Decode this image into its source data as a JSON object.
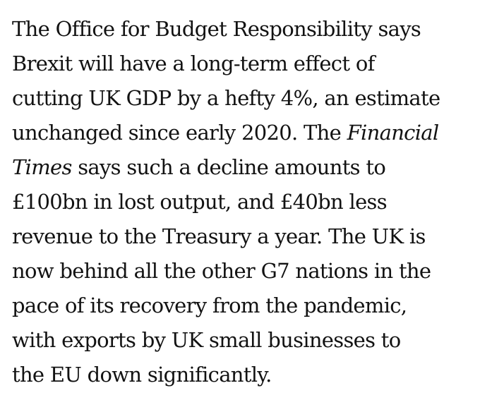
{
  "article": {
    "lines": [
      [
        "The Office for Budget Responsibility says"
      ],
      [
        "Brexit will have a long-term effect of"
      ],
      [
        "cutting UK GDP by a hefty 4%, an estimate"
      ],
      [
        "unchanged since early 2020. The ",
        "Financial"
      ],
      [
        "Times",
        " says such a decline amounts to"
      ],
      [
        "£100bn in lost output, and £40bn less"
      ],
      [
        "revenue to the Treasury a year. The UK is"
      ],
      [
        "now behind all the other G7 nations in the"
      ],
      [
        "pace of its recovery from the pandemic,"
      ],
      [
        "with exports by UK small businesses to"
      ],
      [
        "the EU down significantly."
      ]
    ]
  }
}
